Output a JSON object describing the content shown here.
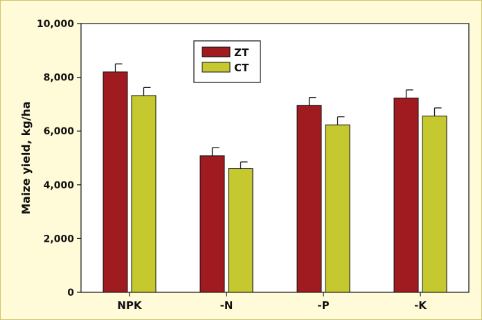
{
  "colors": {
    "background": "#fffbd8",
    "border": "#d2c26a",
    "zt": "#9f1b20",
    "ct": "#c6c830",
    "error_bar": "#111111"
  },
  "chart_data": {
    "type": "bar",
    "title": "",
    "xlabel": "",
    "ylabel": "Maize yield, kg/ha",
    "ylim": [
      0,
      10000
    ],
    "yticks": [
      0,
      2000,
      4000,
      6000,
      8000,
      10000
    ],
    "ytick_labels": [
      "0",
      "2,000",
      "4,000",
      "6,000",
      "8,000",
      "10,000"
    ],
    "categories": [
      "NPK",
      "-N",
      "-P",
      "-K"
    ],
    "series": [
      {
        "name": "ZT",
        "color": "#9f1b20",
        "values": [
          8200,
          5080,
          6950,
          7230
        ],
        "errors": [
          300,
          300,
          300,
          300
        ]
      },
      {
        "name": "CT",
        "color": "#c6c830",
        "values": [
          7320,
          4600,
          6230,
          6560
        ],
        "errors": [
          300,
          250,
          300,
          300
        ]
      }
    ],
    "legend_position": "top-left inside plot",
    "grid": false,
    "error_bars": true
  }
}
